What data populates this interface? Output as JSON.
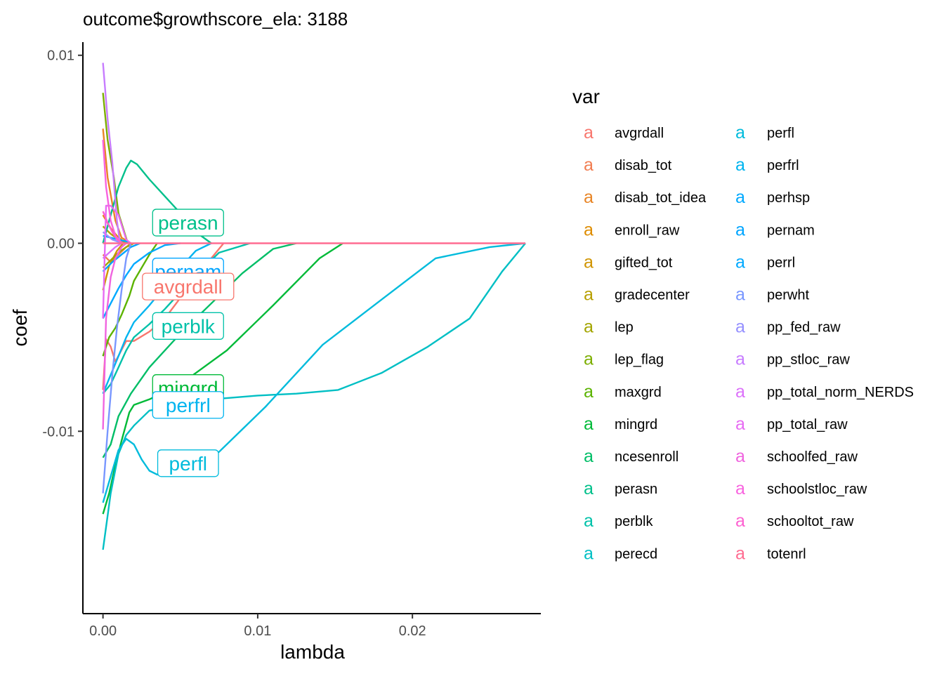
{
  "chart_data": {
    "type": "line",
    "title": "outcome$growthscore_ela: 3188",
    "xlabel": "lambda",
    "ylabel": "coef",
    "xlim": [
      -0.0013,
      0.0283
    ],
    "ylim": [
      -0.0197,
      0.0107
    ],
    "x_ticks": [
      {
        "value": 0.0,
        "label": "0.00"
      },
      {
        "value": 0.01,
        "label": "0.01"
      },
      {
        "value": 0.02,
        "label": "0.02"
      }
    ],
    "y_ticks": [
      {
        "value": 0.01,
        "label": "0.01"
      },
      {
        "value": 0.0,
        "label": "0.00"
      },
      {
        "value": -0.01,
        "label": "-0.01"
      }
    ],
    "grid": false,
    "legend": {
      "title": "var",
      "position": "right",
      "key_glyph": "a",
      "columns": 2
    },
    "series": [
      {
        "name": "avgrdall",
        "color": "#F8766D",
        "x": [
          0,
          0.0002,
          0.0005,
          0.0008,
          0.0015,
          0.002,
          0.003,
          0.004,
          0.005,
          0.006,
          0.007,
          0.0078
        ],
        "y": [
          -0.0078,
          -0.0051,
          -0.0055,
          -0.0063,
          -0.0052,
          -0.0052,
          -0.0047,
          -0.004,
          -0.0029,
          -0.0018,
          -0.0008,
          0
        ]
      },
      {
        "name": "disab_tot",
        "color": "#F17D51",
        "x": [
          0,
          0.0005,
          0.001,
          0.0015,
          0.0018
        ],
        "y": [
          -0.0006,
          -0.001,
          -0.0006,
          -0.0002,
          0
        ]
      },
      {
        "name": "disab_tot_idea",
        "color": "#E88526",
        "x": [
          0,
          0.0003,
          0.0008,
          0.0012,
          0.0018
        ],
        "y": [
          0.0061,
          0.0035,
          0.0012,
          0.0003,
          0
        ]
      },
      {
        "name": "enroll_raw",
        "color": "#DE8C00",
        "x": [
          0,
          0.0005,
          0.001,
          0.0015
        ],
        "y": [
          0.0015,
          0.0008,
          0.0003,
          0
        ]
      },
      {
        "name": "gifted_tot",
        "color": "#D09400",
        "x": [
          0,
          0.0004,
          0.0009,
          0.0013
        ],
        "y": [
          -0.0025,
          -0.0012,
          -0.0004,
          0
        ]
      },
      {
        "name": "gradecenter",
        "color": "#B79F00",
        "x": [
          0,
          0.0005,
          0.001,
          0.0016
        ],
        "y": [
          0.0009,
          0.0005,
          0.0002,
          0
        ]
      },
      {
        "name": "lep",
        "color": "#A3A500",
        "x": [
          0,
          0.0005,
          0.001,
          0.0015,
          0.002
        ],
        "y": [
          -0.0013,
          -0.0009,
          -0.0005,
          -0.0002,
          0
        ]
      },
      {
        "name": "lep_flag",
        "color": "#7CAE00",
        "x": [
          0,
          0.0003,
          0.0007,
          0.001,
          0.0016
        ],
        "y": [
          0.008,
          0.0055,
          0.0035,
          0.0016,
          0
        ]
      },
      {
        "name": "maxgrd",
        "color": "#5BB300",
        "x": [
          0,
          0.0004,
          0.0008,
          0.0012,
          0.0017,
          0.002,
          0.0025,
          0.003,
          0.0035
        ],
        "y": [
          -0.006,
          -0.005,
          -0.0045,
          -0.0038,
          -0.0028,
          -0.002,
          -0.0013,
          -0.0006,
          0
        ]
      },
      {
        "name": "mingrd",
        "color": "#00BA38",
        "x": [
          0,
          0.0004,
          0.0008,
          0.0012,
          0.0017,
          0.002,
          0.003,
          0.005,
          0.008,
          0.011,
          0.014,
          0.0155
        ],
        "y": [
          -0.0144,
          -0.0133,
          -0.0118,
          -0.0105,
          -0.009,
          -0.0086,
          -0.0083,
          -0.0075,
          -0.0057,
          -0.0033,
          -0.0008,
          0
        ]
      },
      {
        "name": "ncesenroll",
        "color": "#00BE67",
        "x": [
          0,
          0.0005,
          0.001,
          0.0018,
          0.003,
          0.005,
          0.007,
          0.009,
          0.011,
          0.0125
        ],
        "y": [
          -0.0114,
          -0.0107,
          -0.0092,
          -0.008,
          -0.0066,
          -0.0048,
          -0.0032,
          -0.0016,
          -0.0003,
          0
        ]
      },
      {
        "name": "perasn",
        "color": "#00C08B",
        "x": [
          0,
          0.0005,
          0.001,
          0.0015,
          0.0018,
          0.0022,
          0.003,
          0.004,
          0.005,
          0.006,
          0.007
        ],
        "y": [
          0,
          0.0015,
          0.003,
          0.004,
          0.0044,
          0.0042,
          0.0034,
          0.0025,
          0.0016,
          0.0006,
          0
        ]
      },
      {
        "name": "perblk",
        "color": "#00C1A9",
        "x": [
          0,
          0.0005,
          0.001,
          0.0015,
          0.002,
          0.003,
          0.004,
          0.005,
          0.006,
          0.0075,
          0.0095
        ],
        "y": [
          -0.008,
          -0.0075,
          -0.0066,
          -0.0057,
          -0.005,
          -0.0043,
          -0.0035,
          -0.0026,
          -0.0017,
          -0.0005,
          0
        ]
      },
      {
        "name": "perecd",
        "color": "#00BFC4",
        "x": [
          0,
          0.0005,
          0.001,
          0.0015,
          0.002,
          0.003,
          0.005,
          0.007,
          0.01,
          0.0125,
          0.0152,
          0.018,
          0.021,
          0.0237,
          0.0258,
          0.0273
        ],
        "y": [
          -0.0163,
          -0.0133,
          -0.0112,
          -0.0102,
          -0.0097,
          -0.0089,
          -0.0086,
          -0.0083,
          -0.0081,
          -0.008,
          -0.0078,
          -0.0069,
          -0.0055,
          -0.004,
          -0.0015,
          0
        ]
      },
      {
        "name": "perfl",
        "color": "#00BBDC",
        "x": [
          0,
          0.0005,
          0.001,
          0.0015,
          0.002,
          0.0025,
          0.003,
          0.0035,
          0.004,
          0.005,
          0.006,
          0.0075,
          0.0105,
          0.0142,
          0.018,
          0.0215,
          0.025,
          0.0273
        ],
        "y": [
          -0.0138,
          -0.0124,
          -0.011,
          -0.0104,
          -0.0107,
          -0.0115,
          -0.0121,
          -0.0123,
          -0.0123,
          -0.012,
          -0.0117,
          -0.0111,
          -0.0087,
          -0.0054,
          -0.003,
          -0.0008,
          -0.0002,
          0
        ]
      },
      {
        "name": "perfrl",
        "color": "#00B4EF",
        "x": [
          0,
          0.0005,
          0.001,
          0.0015,
          0.002,
          0.003,
          0.004,
          0.005,
          0.006,
          0.007
        ],
        "y": [
          -0.008,
          -0.007,
          -0.006,
          -0.005,
          -0.0042,
          -0.0033,
          -0.0023,
          -0.0013,
          -0.0004,
          0
        ]
      },
      {
        "name": "perhsp",
        "color": "#00A9FF",
        "x": [
          0,
          0.0005,
          0.001,
          0.0015,
          0.002,
          0.003,
          0.004,
          0.005
        ],
        "y": [
          -0.004,
          -0.0032,
          -0.0024,
          -0.0017,
          -0.0011,
          -0.0005,
          -0.0001,
          0
        ]
      },
      {
        "name": "pernam",
        "color": "#00A5FF",
        "x": [
          0,
          0.0006,
          0.0012,
          0.0018,
          0.0024
        ],
        "y": [
          -0.0015,
          -0.001,
          -0.0006,
          -0.0002,
          0
        ]
      },
      {
        "name": "perrl",
        "color": "#00A9FF",
        "x": [
          0,
          0.0005,
          0.001,
          0.0015,
          0.0018
        ],
        "y": [
          0.0004,
          0.0003,
          0.0002,
          0.0001,
          0
        ]
      },
      {
        "name": "perwht",
        "color": "#7997FF",
        "x": [
          0,
          0.0003,
          0.0006,
          0.0009,
          0.0012,
          0.0015,
          0.0018
        ],
        "y": [
          -0.0133,
          -0.01,
          -0.007,
          -0.0045,
          -0.0025,
          -0.0008,
          0
        ]
      },
      {
        "name": "pp_fed_raw",
        "color": "#9590FF",
        "x": [
          0,
          0.0003,
          0.0006,
          0.0009,
          0.0012
        ],
        "y": [
          0.0006,
          0.0004,
          0.0002,
          0.0001,
          0
        ]
      },
      {
        "name": "pp_stloc_raw",
        "color": "#C77CFF",
        "x": [
          0,
          0.0003,
          0.0006,
          0.0009,
          0.0011
        ],
        "y": [
          0.0096,
          0.0066,
          0.0043,
          0.0012,
          0
        ]
      },
      {
        "name": "pp_total_norm_NERDS",
        "color": "#DC71FA",
        "x": [
          0,
          0.0004,
          0.0008,
          0.0012
        ],
        "y": [
          -0.0008,
          -0.0005,
          -0.0002,
          0
        ]
      },
      {
        "name": "pp_total_raw",
        "color": "#E76BF3",
        "x": [
          0,
          0.0002,
          0.0005,
          0.001,
          0.0015,
          0.0018
        ],
        "y": [
          -0.004,
          0.002,
          0.002,
          0.0015,
          0.0002,
          0
        ]
      },
      {
        "name": "schoolfed_raw",
        "color": "#F064DF",
        "x": [
          0,
          0.0002,
          0.0005,
          0.0008,
          0.0012,
          0.0015
        ],
        "y": [
          -0.0099,
          -0.004,
          -0.0018,
          -0.0008,
          -0.0002,
          0
        ]
      },
      {
        "name": "schoolstloc_raw",
        "color": "#F863DF",
        "x": [
          0,
          0.0002,
          0.0005,
          0.0008,
          0.0012
        ],
        "y": [
          0.0055,
          0.003,
          0.0012,
          0.0004,
          0
        ]
      },
      {
        "name": "schooltot_raw",
        "color": "#FD61D1",
        "x": [
          0,
          0.0003,
          0.0006,
          0.0009,
          0.0013
        ],
        "y": [
          0.0017,
          0.0011,
          0.0006,
          0.0002,
          0
        ]
      },
      {
        "name": "totenrl",
        "color": "#FF6C91",
        "x": [
          0,
          0.005,
          0.01,
          0.015,
          0.02,
          0.025,
          0.0273
        ],
        "y": [
          0,
          0,
          0,
          0,
          0,
          0,
          0
        ]
      }
    ],
    "annotations": [
      {
        "text": "perasn",
        "x": 0.0055,
        "y": 0.0011,
        "color": "#00C08B"
      },
      {
        "text": "pernam",
        "x": 0.0055,
        "y": -0.0015,
        "color": "#00A5FF"
      },
      {
        "text": "avgrdall",
        "x": 0.0055,
        "y": -0.0023,
        "color": "#F8766D"
      },
      {
        "text": "perblk",
        "x": 0.0055,
        "y": -0.0044,
        "color": "#00C1A9"
      },
      {
        "text": "mingrd",
        "x": 0.0055,
        "y": -0.0077,
        "color": "#00BA38"
      },
      {
        "text": "perfrl",
        "x": 0.0055,
        "y": -0.0086,
        "color": "#00B4EF"
      },
      {
        "text": "perfl",
        "x": 0.0055,
        "y": -0.0117,
        "color": "#00BBDC"
      }
    ]
  }
}
